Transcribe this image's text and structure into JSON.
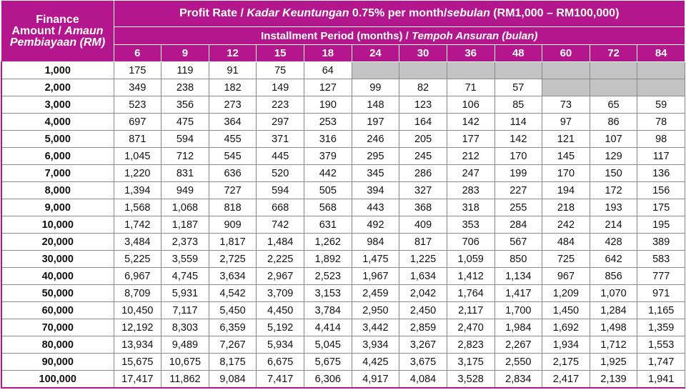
{
  "table": {
    "corner": [
      "Finance",
      "Amount / ",
      "Amaun",
      "Pembiayaan (RM)"
    ],
    "title": [
      "Profit Rate / ",
      "Kadar Keuntungan",
      " 0.75% per month/",
      "sebulan",
      " (RM1,000 – RM100,000)"
    ],
    "subtitle": [
      "Installment Period (months) / ",
      "Tempoh Ansuran (bulan)"
    ],
    "periods": [
      6,
      9,
      12,
      15,
      18,
      24,
      30,
      36,
      48,
      60,
      72,
      84
    ],
    "rows": [
      {
        "amount": "1,000",
        "values": [
          "175",
          "119",
          "91",
          "75",
          "64",
          null,
          null,
          null,
          null,
          null,
          null,
          null
        ]
      },
      {
        "amount": "2,000",
        "values": [
          "349",
          "238",
          "182",
          "149",
          "127",
          "99",
          "82",
          "71",
          "57",
          null,
          null,
          null
        ]
      },
      {
        "amount": "3,000",
        "values": [
          "523",
          "356",
          "273",
          "223",
          "190",
          "148",
          "123",
          "106",
          "85",
          "73",
          "65",
          "59"
        ]
      },
      {
        "amount": "4,000",
        "values": [
          "697",
          "475",
          "364",
          "297",
          "253",
          "197",
          "164",
          "142",
          "114",
          "97",
          "86",
          "78"
        ]
      },
      {
        "amount": "5,000",
        "values": [
          "871",
          "594",
          "455",
          "371",
          "316",
          "246",
          "205",
          "177",
          "142",
          "121",
          "107",
          "98"
        ]
      },
      {
        "amount": "6,000",
        "values": [
          "1,045",
          "712",
          "545",
          "445",
          "379",
          "295",
          "245",
          "212",
          "170",
          "145",
          "129",
          "117"
        ]
      },
      {
        "amount": "7,000",
        "values": [
          "1,220",
          "831",
          "636",
          "520",
          "442",
          "345",
          "286",
          "247",
          "199",
          "170",
          "150",
          "136"
        ]
      },
      {
        "amount": "8,000",
        "values": [
          "1,394",
          "949",
          "727",
          "594",
          "505",
          "394",
          "327",
          "283",
          "227",
          "194",
          "172",
          "156"
        ]
      },
      {
        "amount": "9,000",
        "values": [
          "1,568",
          "1,068",
          "818",
          "668",
          "568",
          "443",
          "368",
          "318",
          "255",
          "218",
          "193",
          "175"
        ]
      },
      {
        "amount": "10,000",
        "values": [
          "1,742",
          "1,187",
          "909",
          "742",
          "631",
          "492",
          "409",
          "353",
          "284",
          "242",
          "214",
          "195"
        ]
      },
      {
        "amount": "20,000",
        "values": [
          "3,484",
          "2,373",
          "1,817",
          "1,484",
          "1,262",
          "984",
          "817",
          "706",
          "567",
          "484",
          "428",
          "389"
        ]
      },
      {
        "amount": "30,000",
        "values": [
          "5,225",
          "3,559",
          "2,725",
          "2,225",
          "1,892",
          "1,475",
          "1,225",
          "1,059",
          "850",
          "725",
          "642",
          "583"
        ]
      },
      {
        "amount": "40,000",
        "values": [
          "6,967",
          "4,745",
          "3,634",
          "2,967",
          "2,523",
          "1,967",
          "1,634",
          "1,412",
          "1,134",
          "967",
          "856",
          "777"
        ]
      },
      {
        "amount": "50,000",
        "values": [
          "8,709",
          "5,931",
          "4,542",
          "3,709",
          "3,153",
          "2,459",
          "2,042",
          "1,764",
          "1,417",
          "1,209",
          "1,070",
          "971"
        ]
      },
      {
        "amount": "60,000",
        "values": [
          "10,450",
          "7,117",
          "5,450",
          "4,450",
          "3,784",
          "2,950",
          "2,450",
          "2,117",
          "1,700",
          "1,450",
          "1,284",
          "1,165"
        ]
      },
      {
        "amount": "70,000",
        "values": [
          "12,192",
          "8,303",
          "6,359",
          "5,192",
          "4,414",
          "3,442",
          "2,859",
          "2,470",
          "1,984",
          "1,692",
          "1,498",
          "1,359"
        ]
      },
      {
        "amount": "80,000",
        "values": [
          "13,934",
          "9,489",
          "7,267",
          "5,934",
          "5,045",
          "3,934",
          "3,267",
          "2,823",
          "2,267",
          "1,934",
          "1,712",
          "1,553"
        ]
      },
      {
        "amount": "90,000",
        "values": [
          "15,675",
          "10,675",
          "8,175",
          "6,675",
          "5,675",
          "4,425",
          "3,675",
          "3,175",
          "2,550",
          "2,175",
          "1,925",
          "1,747"
        ]
      },
      {
        "amount": "100,000",
        "values": [
          "17,417",
          "11,862",
          "9,084",
          "7,417",
          "6,306",
          "4,917",
          "4,084",
          "3,528",
          "2,834",
          "2,417",
          "2,139",
          "1,941"
        ]
      }
    ]
  }
}
